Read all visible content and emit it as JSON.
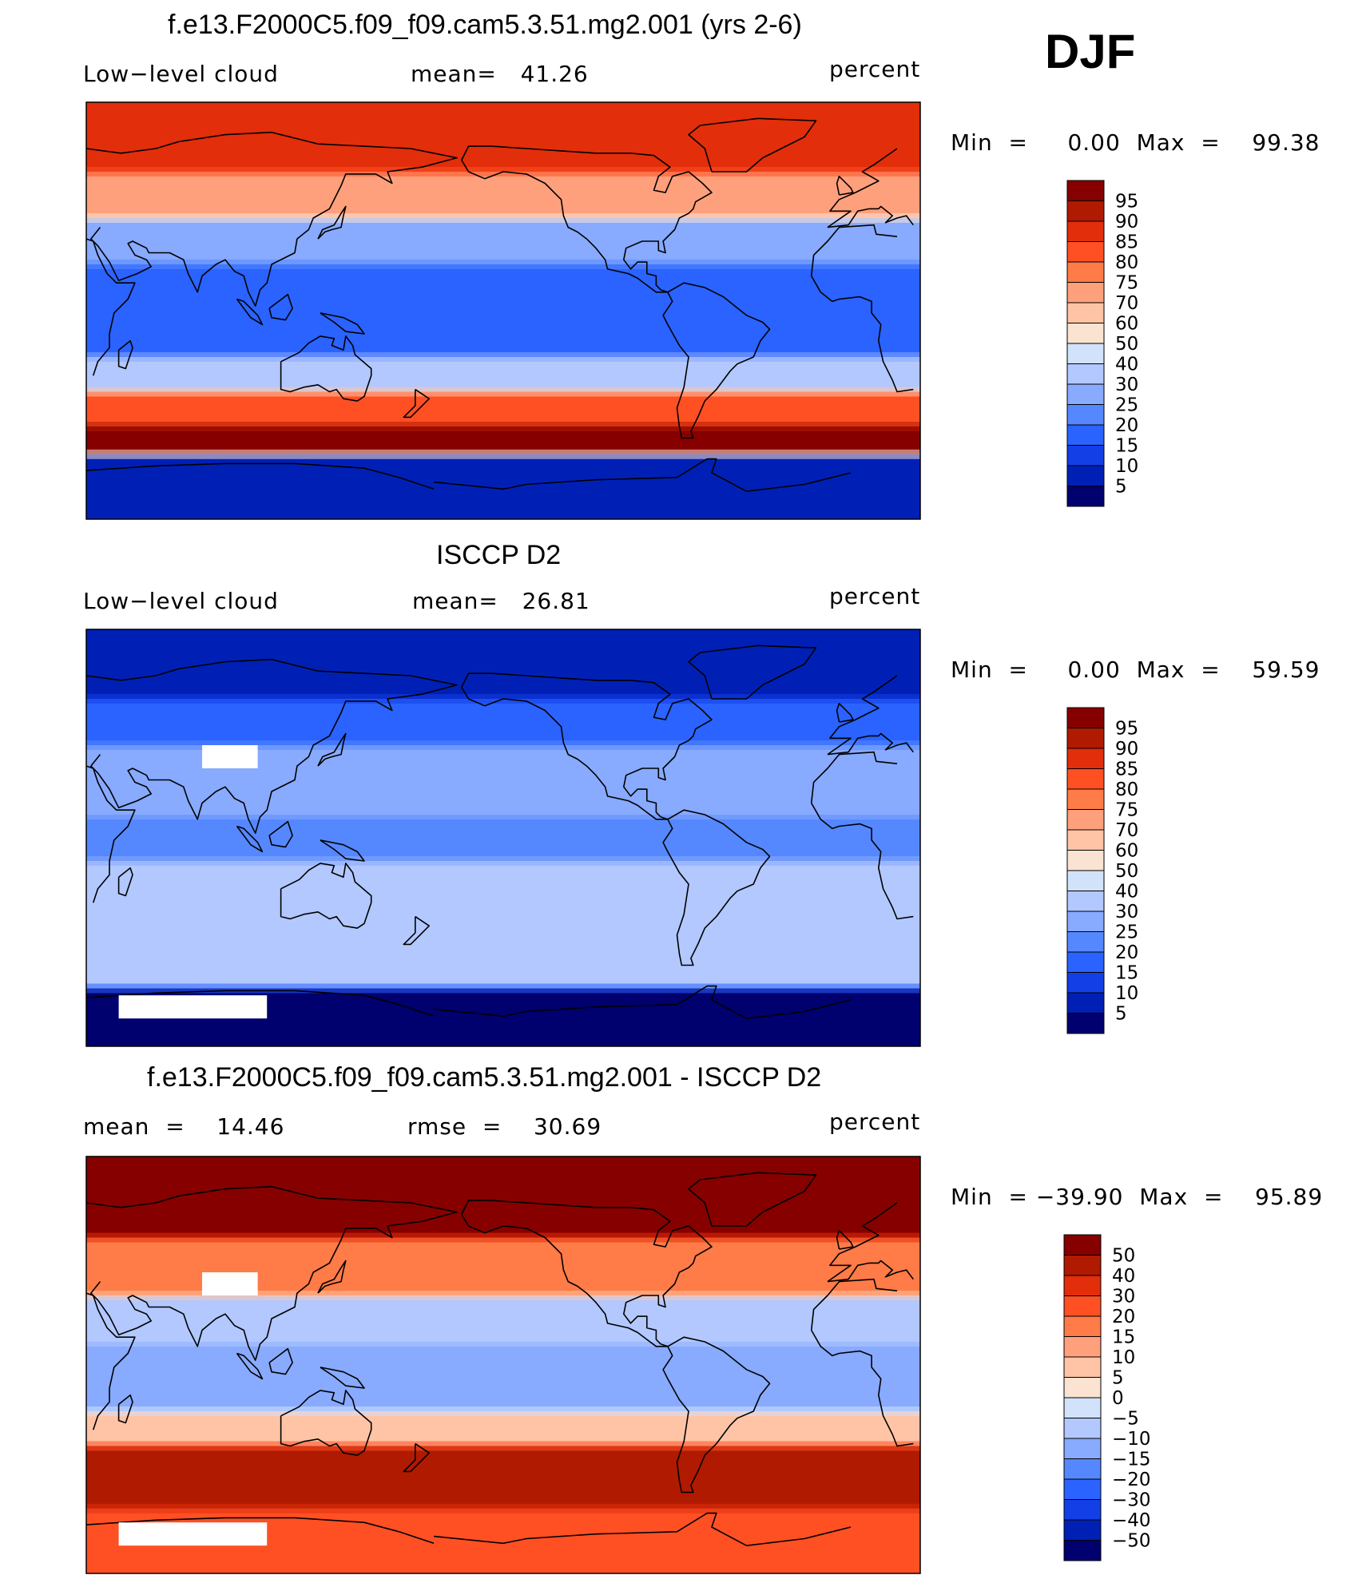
{
  "season": "DJF",
  "units": "percent",
  "colors": {
    "cloud_scale": [
      "#00006e",
      "#0020b5",
      "#1240e6",
      "#2a63ff",
      "#5588ff",
      "#88aaff",
      "#b2c8ff",
      "#d2e2fb",
      "#fbe3d2",
      "#ffc4a6",
      "#ffa07c",
      "#ff7b47",
      "#ff5024",
      "#e22e0a",
      "#b01a00",
      "#860000"
    ],
    "diff_scale": [
      "#00006e",
      "#0020b5",
      "#1240e6",
      "#2a63ff",
      "#5588ff",
      "#88aaff",
      "#b2c8ff",
      "#d2e2fb",
      "#fbe3d2",
      "#ffc4a6",
      "#ffa07c",
      "#ff7b47",
      "#ff5024",
      "#e22e0a",
      "#b01a00",
      "#860000"
    ],
    "missing": "#ffffff",
    "coastline": "#000000"
  },
  "panels": [
    {
      "title": "f.e13.F2000C5.f09_f09.cam5.3.51.mg2.001 (yrs 2-6)",
      "left_label": "Low−level cloud",
      "center_label": "mean=   41.26",
      "right_label": "percent",
      "minmax": "Min  =     0.00  Max  =    99.38",
      "legend_labels": [
        "95",
        "90",
        "85",
        "80",
        "75",
        "70",
        "60",
        "50",
        "40",
        "30",
        "25",
        "20",
        "15",
        "10",
        "5"
      ]
    },
    {
      "title": "ISCCP D2",
      "left_label": "Low−level cloud",
      "center_label": "mean=   26.81",
      "right_label": "percent",
      "minmax": "Min  =     0.00  Max  =    59.59",
      "legend_labels": [
        "95",
        "90",
        "85",
        "80",
        "75",
        "70",
        "60",
        "50",
        "40",
        "30",
        "25",
        "20",
        "15",
        "10",
        "5"
      ]
    },
    {
      "title": "f.e13.F2000C5.f09_f09.cam5.3.51.mg2.001 - ISCCP D2",
      "left_label": "mean  =    14.46",
      "center_label": "rmse  =    30.69",
      "right_label": "percent",
      "minmax": "Min  = −39.90  Max  =    95.89",
      "legend_labels": [
        "50",
        "40",
        "30",
        "20",
        "15",
        "10",
        "5",
        "0",
        "−5",
        "−10",
        "−15",
        "−20",
        "−30",
        "−40",
        "−50"
      ]
    }
  ],
  "map_data": [
    {
      "field": "model",
      "lat_bands": [
        {
          "lat": [
            90,
            60
          ],
          "level": 13
        },
        {
          "lat": [
            60,
            40
          ],
          "level": 10
        },
        {
          "lat": [
            40,
            20
          ],
          "level": 5
        },
        {
          "lat": [
            20,
            -20
          ],
          "level": 3
        },
        {
          "lat": [
            -20,
            -35
          ],
          "level": 6
        },
        {
          "lat": [
            -35,
            -50
          ],
          "level": 12
        },
        {
          "lat": [
            -50,
            -62
          ],
          "level": 15
        },
        {
          "lat": [
            -62,
            -90
          ],
          "level": 1
        }
      ]
    },
    {
      "field": "obs",
      "lat_bands": [
        {
          "lat": [
            90,
            60
          ],
          "level": 1
        },
        {
          "lat": [
            60,
            40
          ],
          "level": 3
        },
        {
          "lat": [
            40,
            10
          ],
          "level": 5
        },
        {
          "lat": [
            10,
            -10
          ],
          "level": 4
        },
        {
          "lat": [
            -10,
            -45
          ],
          "level": 6
        },
        {
          "lat": [
            -45,
            -65
          ],
          "level": 6
        },
        {
          "lat": [
            -65,
            -90
          ],
          "level": 0
        }
      ]
    },
    {
      "field": "difference",
      "lat_bands": [
        {
          "lat": [
            90,
            55
          ],
          "level": 15
        },
        {
          "lat": [
            55,
            30
          ],
          "level": 11
        },
        {
          "lat": [
            30,
            10
          ],
          "level": 6
        },
        {
          "lat": [
            10,
            -20
          ],
          "level": 5
        },
        {
          "lat": [
            -20,
            -35
          ],
          "level": 9
        },
        {
          "lat": [
            -35,
            -62
          ],
          "level": 14
        },
        {
          "lat": [
            -62,
            -90
          ],
          "level": 12
        }
      ]
    }
  ]
}
